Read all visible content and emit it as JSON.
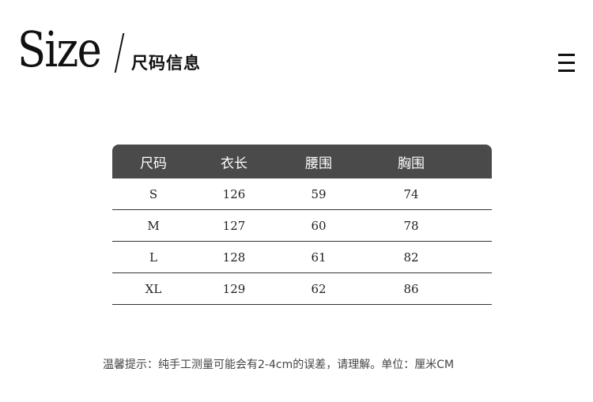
{
  "header": {
    "title_en": "Size",
    "title_cn": "尺码信息",
    "menu_icon": "hamburger-menu-icon"
  },
  "table": {
    "headers": [
      "尺码",
      "衣长",
      "腰围",
      "胸围"
    ],
    "rows": [
      [
        "S",
        "126",
        "59",
        "74"
      ],
      [
        "M",
        "127",
        "60",
        "78"
      ],
      [
        "L",
        "128",
        "61",
        "82"
      ],
      [
        "XL",
        "129",
        "62",
        "86"
      ]
    ],
    "header_color": "#4a4a4a"
  },
  "note": "温馨提示：纯手工测量可能会有2-4cm的误差，请理解。单位：厘米CM"
}
